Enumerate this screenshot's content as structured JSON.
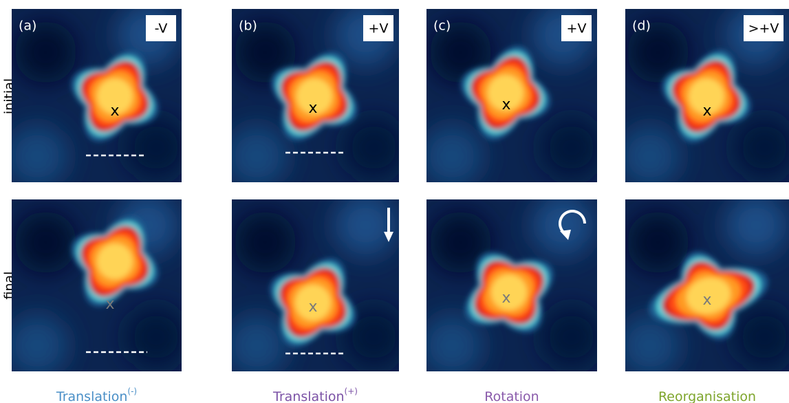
{
  "rows": [
    "initial",
    "final"
  ],
  "marker": "x",
  "panels": [
    {
      "label": "(a)",
      "voltage": "-V",
      "caption": "Translation",
      "caption_sup": "(-)",
      "caption_color": "#4a8fc7"
    },
    {
      "label": "(b)",
      "voltage": "+V",
      "caption": "Translation",
      "caption_sup": "(+)",
      "caption_color": "#7b52a6"
    },
    {
      "label": "(c)",
      "voltage": "+V",
      "caption": "Rotation",
      "caption_color": "#8a5bab"
    },
    {
      "label": "(d)",
      "voltage": ">+V",
      "caption": "Reorganisation",
      "caption_color": "#7ea52c"
    }
  ]
}
